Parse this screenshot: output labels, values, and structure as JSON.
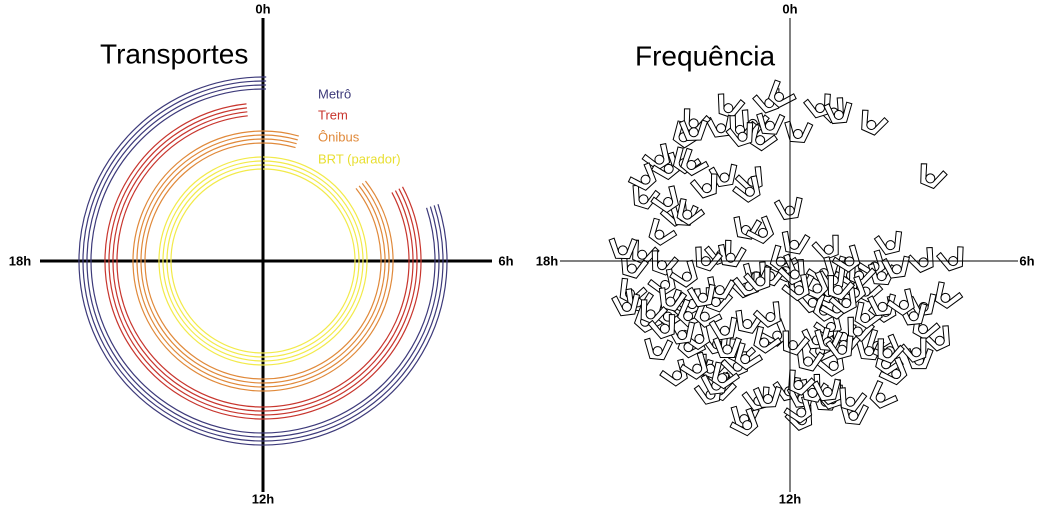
{
  "panels": [
    {
      "title": "Transportes",
      "axis_labels": {
        "top": "0h",
        "right": "6h",
        "bottom": "12h",
        "left": "18h"
      },
      "legend": [
        "Metrô",
        "Trem",
        "Ônibus",
        "BRT (parador)"
      ]
    },
    {
      "title": "Frequência",
      "axis_labels": {
        "top": "0h",
        "right": "6h",
        "bottom": "12h",
        "left": "18h"
      }
    }
  ]
}
